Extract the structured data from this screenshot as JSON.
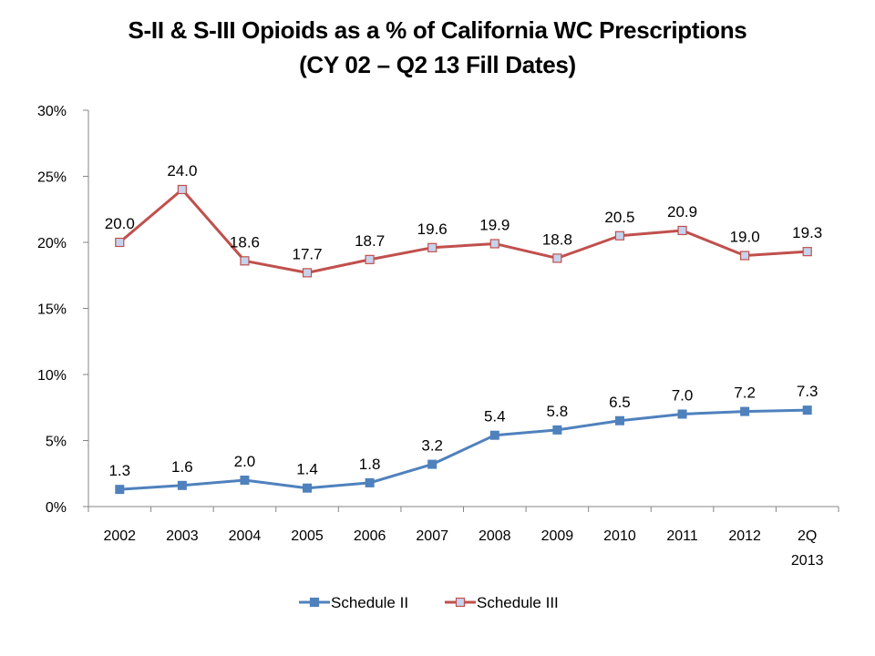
{
  "chart_data": {
    "type": "line",
    "title": "S-II & S-III Opioids as a % of California WC Prescriptions",
    "subtitle": "(CY 02 – Q2 13 Fill Dates)",
    "xlabel": "",
    "ylabel": "",
    "categories": [
      [
        "2002"
      ],
      [
        "2003"
      ],
      [
        "2004"
      ],
      [
        "2005"
      ],
      [
        "2006"
      ],
      [
        "2007"
      ],
      [
        "2008"
      ],
      [
        "2009"
      ],
      [
        "2010"
      ],
      [
        "2011"
      ],
      [
        "2012"
      ],
      [
        "2Q",
        "2013"
      ]
    ],
    "ylim": [
      0,
      30
    ],
    "yticks": [
      0,
      5,
      10,
      15,
      20,
      25,
      30
    ],
    "ytick_format": "{v}%",
    "grid": false,
    "legend_position": "bottom",
    "series": [
      {
        "name": "Schedule II",
        "color": "#4F81BD",
        "marker": "square-filled",
        "marker_fill": "#4F81BD",
        "values": [
          1.3,
          1.6,
          2.0,
          1.4,
          1.8,
          3.2,
          5.4,
          5.8,
          6.5,
          7.0,
          7.2,
          7.3
        ],
        "labels": [
          "1.3",
          "1.6",
          "2.0",
          "1.4",
          "1.8",
          "3.2",
          "5.4",
          "5.8",
          "6.5",
          "7.0",
          "7.2",
          "7.3"
        ]
      },
      {
        "name": "Schedule III",
        "color": "#C0504D",
        "marker": "square-outlined",
        "marker_fill": "#C6D3EC",
        "values": [
          20.0,
          24.0,
          18.6,
          17.7,
          18.7,
          19.6,
          19.9,
          18.8,
          20.5,
          20.9,
          19.0,
          19.3
        ],
        "labels": [
          "20.0",
          "24.0",
          "18.6",
          "17.7",
          "18.7",
          "19.6",
          "19.9",
          "18.8",
          "20.5",
          "20.9",
          "19.0",
          "19.3"
        ]
      }
    ],
    "axis_color": "#868686"
  }
}
